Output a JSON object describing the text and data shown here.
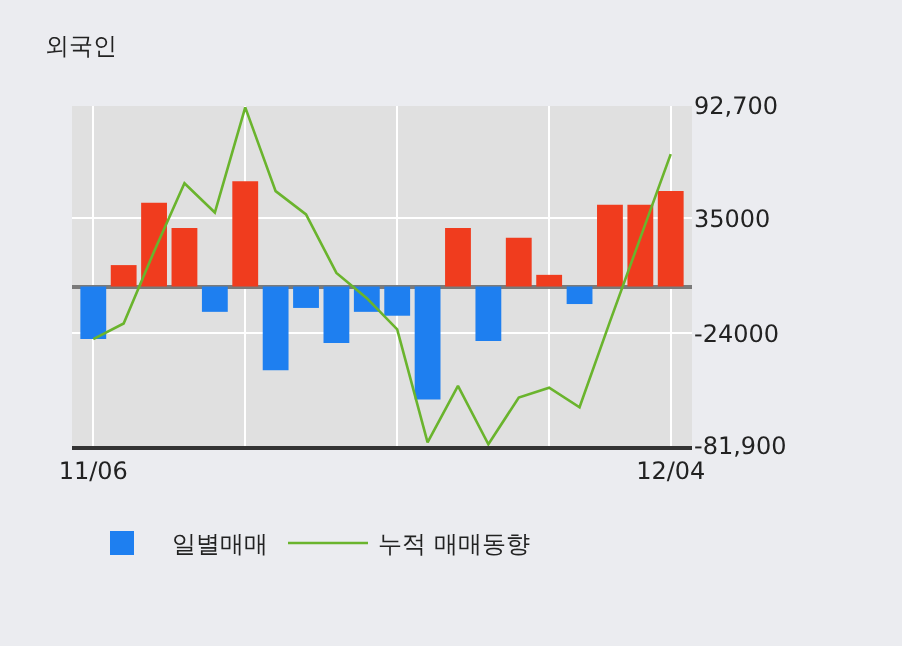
{
  "chart_data": {
    "type": "bar",
    "title": "외국인",
    "categories": [
      "11/06",
      null,
      null,
      null,
      null,
      null,
      null,
      null,
      null,
      null,
      null,
      null,
      null,
      null,
      null,
      null,
      null,
      null,
      null,
      "12/04"
    ],
    "series": [
      {
        "name": "일별매매",
        "colors": [
          "#1e7ff0",
          "#f03c1e",
          "#f03c1e",
          "#f03c1e",
          "#1e7ff0",
          "#f03c1e",
          "#1e7ff0",
          "#1e7ff0",
          "#1e7ff0",
          "#1e7ff0",
          "#1e7ff0",
          "#1e7ff0",
          "#f03c1e",
          "#1e7ff0",
          "#f03c1e",
          "#f03c1e",
          "#1e7ff0",
          "#f03c1e",
          "#f03c1e",
          "#f03c1e"
        ],
        "values": [
          -27000,
          11000,
          43000,
          30000,
          -13000,
          54000,
          -43000,
          -11000,
          -29000,
          -13000,
          -15000,
          -58000,
          30000,
          -28000,
          25000,
          6000,
          -9000,
          42000,
          42000,
          49000
        ]
      },
      {
        "name": "누적 매매동향",
        "type": "line",
        "color": "#6ab42d",
        "values": [
          -27000,
          -19000,
          18000,
          53000,
          38000,
          92000,
          49000,
          37000,
          7000,
          -6000,
          -22000,
          -80000,
          -51000,
          -81000,
          -57000,
          -52000,
          -62000,
          -18000,
          25000,
          68000
        ]
      }
    ],
    "ylim": [
      -81900,
      92700
    ],
    "yticks": [
      {
        "value": 92700,
        "label": "92,700"
      },
      35000,
      -24000,
      {
        "value": -81900,
        "label": "-81,900"
      }
    ],
    "grid": true,
    "legend": "bottom",
    "marker": "none",
    "line_style": "solid"
  }
}
